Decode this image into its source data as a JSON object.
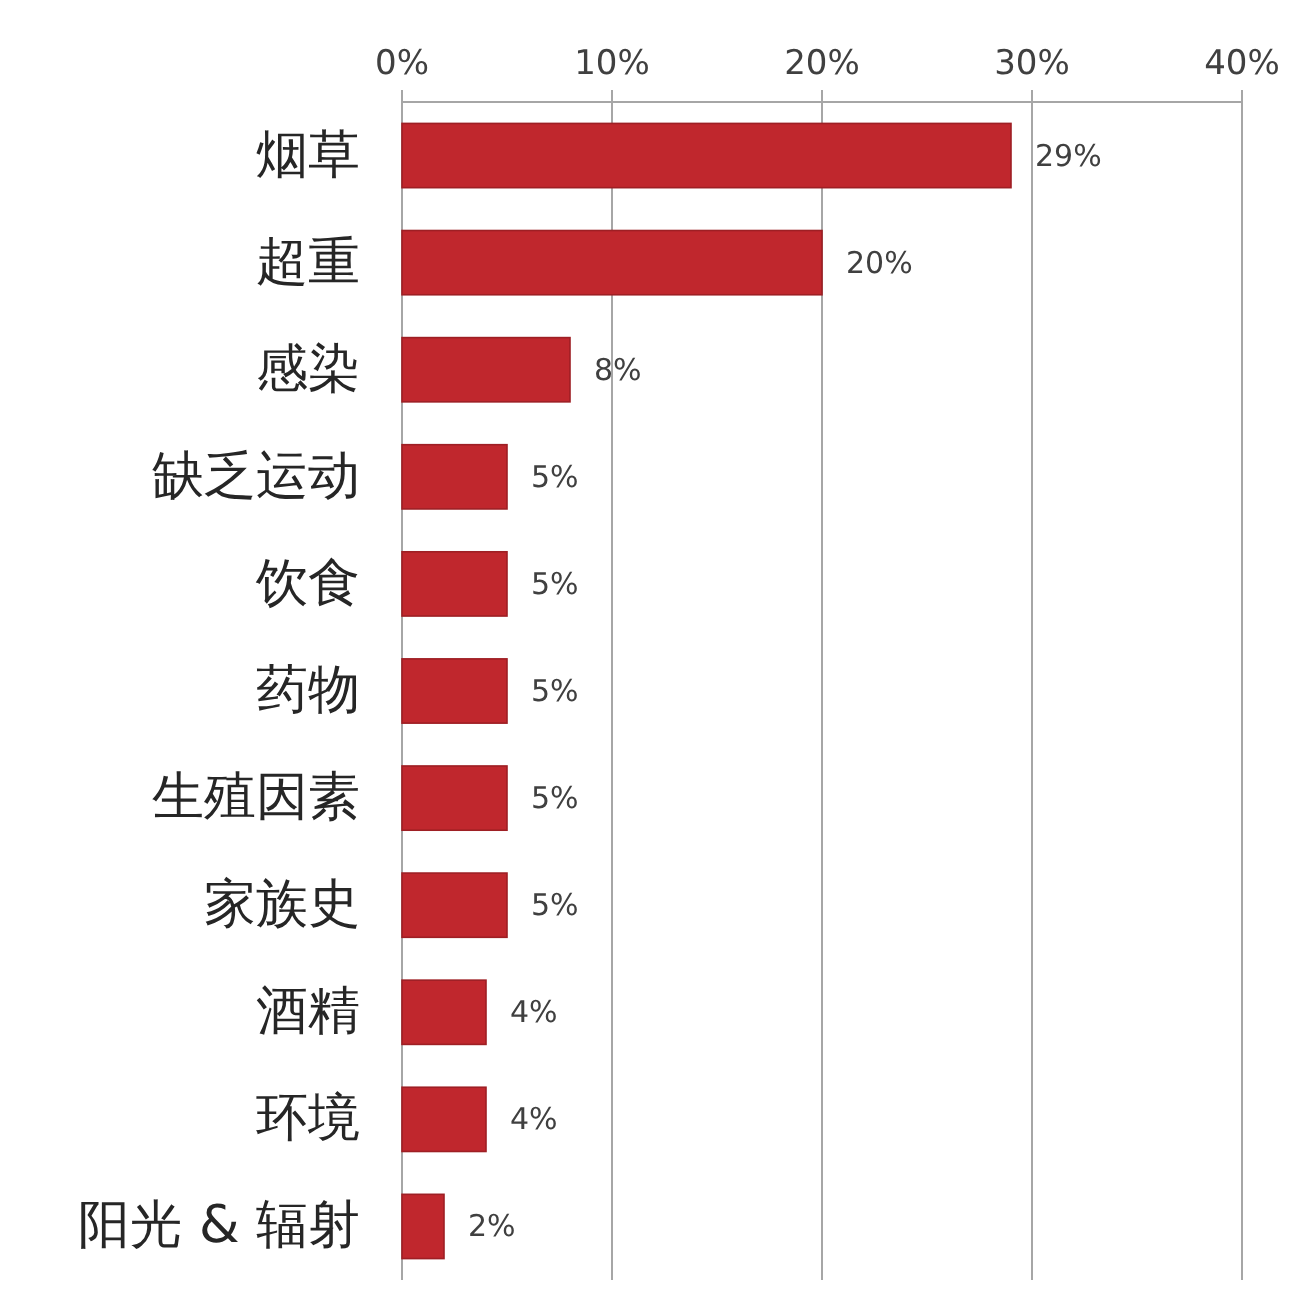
{
  "chart_data": {
    "type": "bar",
    "orientation": "horizontal",
    "categories": [
      "烟草",
      "超重",
      "感染",
      "缺乏运动",
      "饮食",
      "药物",
      "生殖因素",
      "家族史",
      "酒精",
      "环境",
      "阳光 & 辐射"
    ],
    "values": [
      29,
      20,
      8,
      5,
      5,
      5,
      5,
      5,
      4,
      4,
      2
    ],
    "value_labels": [
      "29%",
      "20%",
      "8%",
      "5%",
      "5%",
      "5%",
      "5%",
      "5%",
      "4%",
      "4%",
      "2%"
    ],
    "color": "#c0272d",
    "xlim": [
      0,
      40
    ],
    "xticks": [
      {
        "value": 0,
        "label": "0%"
      },
      {
        "value": 10,
        "label": "10%"
      },
      {
        "value": 20,
        "label": "20%"
      },
      {
        "value": 30,
        "label": "30%"
      },
      {
        "value": 40,
        "label": "40%"
      }
    ],
    "grid": "x"
  }
}
